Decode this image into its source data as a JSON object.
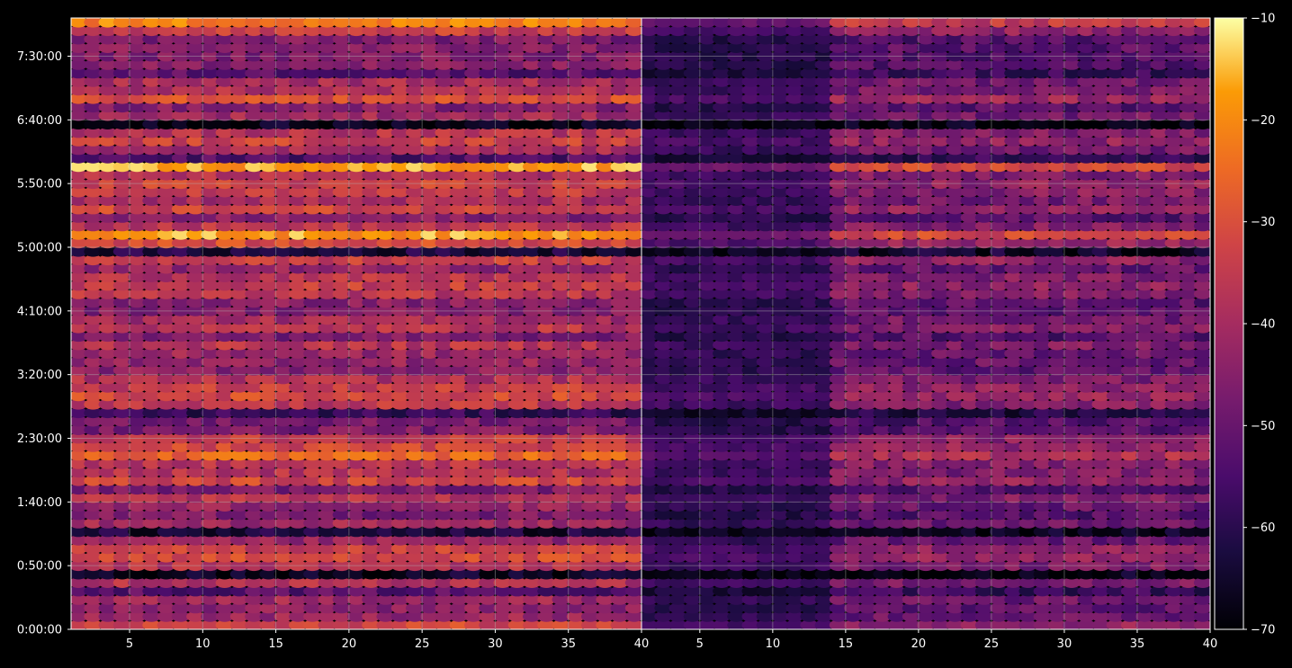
{
  "chart_data": {
    "type": "heatmap",
    "title": "",
    "xlabel": "",
    "ylabel": "",
    "panels": [
      {
        "name": "left",
        "xlim": [
          1,
          40
        ],
        "xticks": [
          5,
          10,
          15,
          20,
          25,
          30,
          35,
          40
        ],
        "xtick_labels": [
          "5",
          "10",
          "15",
          "20",
          "25",
          "30",
          "35",
          "40"
        ]
      },
      {
        "name": "right",
        "xlim": [
          1,
          40
        ],
        "xticks": [
          5,
          10,
          15,
          20,
          25,
          30,
          35,
          40
        ],
        "xtick_labels": [
          "5",
          "10",
          "15",
          "20",
          "25",
          "30",
          "35",
          "40"
        ]
      }
    ],
    "ylim_seconds": [
      0,
      28800
    ],
    "yticks_seconds": [
      0,
      3000,
      6000,
      9000,
      12000,
      15000,
      18000,
      21000,
      24000,
      27000
    ],
    "ytick_labels": [
      "0:00:00",
      "0:50:00",
      "1:40:00",
      "2:30:00",
      "3:20:00",
      "4:10:00",
      "5:00:00",
      "5:50:00",
      "6:40:00",
      "7:30:00"
    ],
    "colorbar": {
      "colormap": "inferno",
      "range": [
        -70,
        -10
      ],
      "ticks": [
        -70,
        -60,
        -50,
        -40,
        -30,
        -20,
        -10
      ],
      "tick_labels": [
        "−70",
        "−60",
        "−50",
        "−40",
        "−30",
        "−20",
        "−10"
      ]
    },
    "grid": true,
    "background": "#000000",
    "grid_color": "#b0b0b0",
    "axis_color": "#ffffff",
    "row_intensity_note_values": [
      -70,
      -10
    ]
  }
}
